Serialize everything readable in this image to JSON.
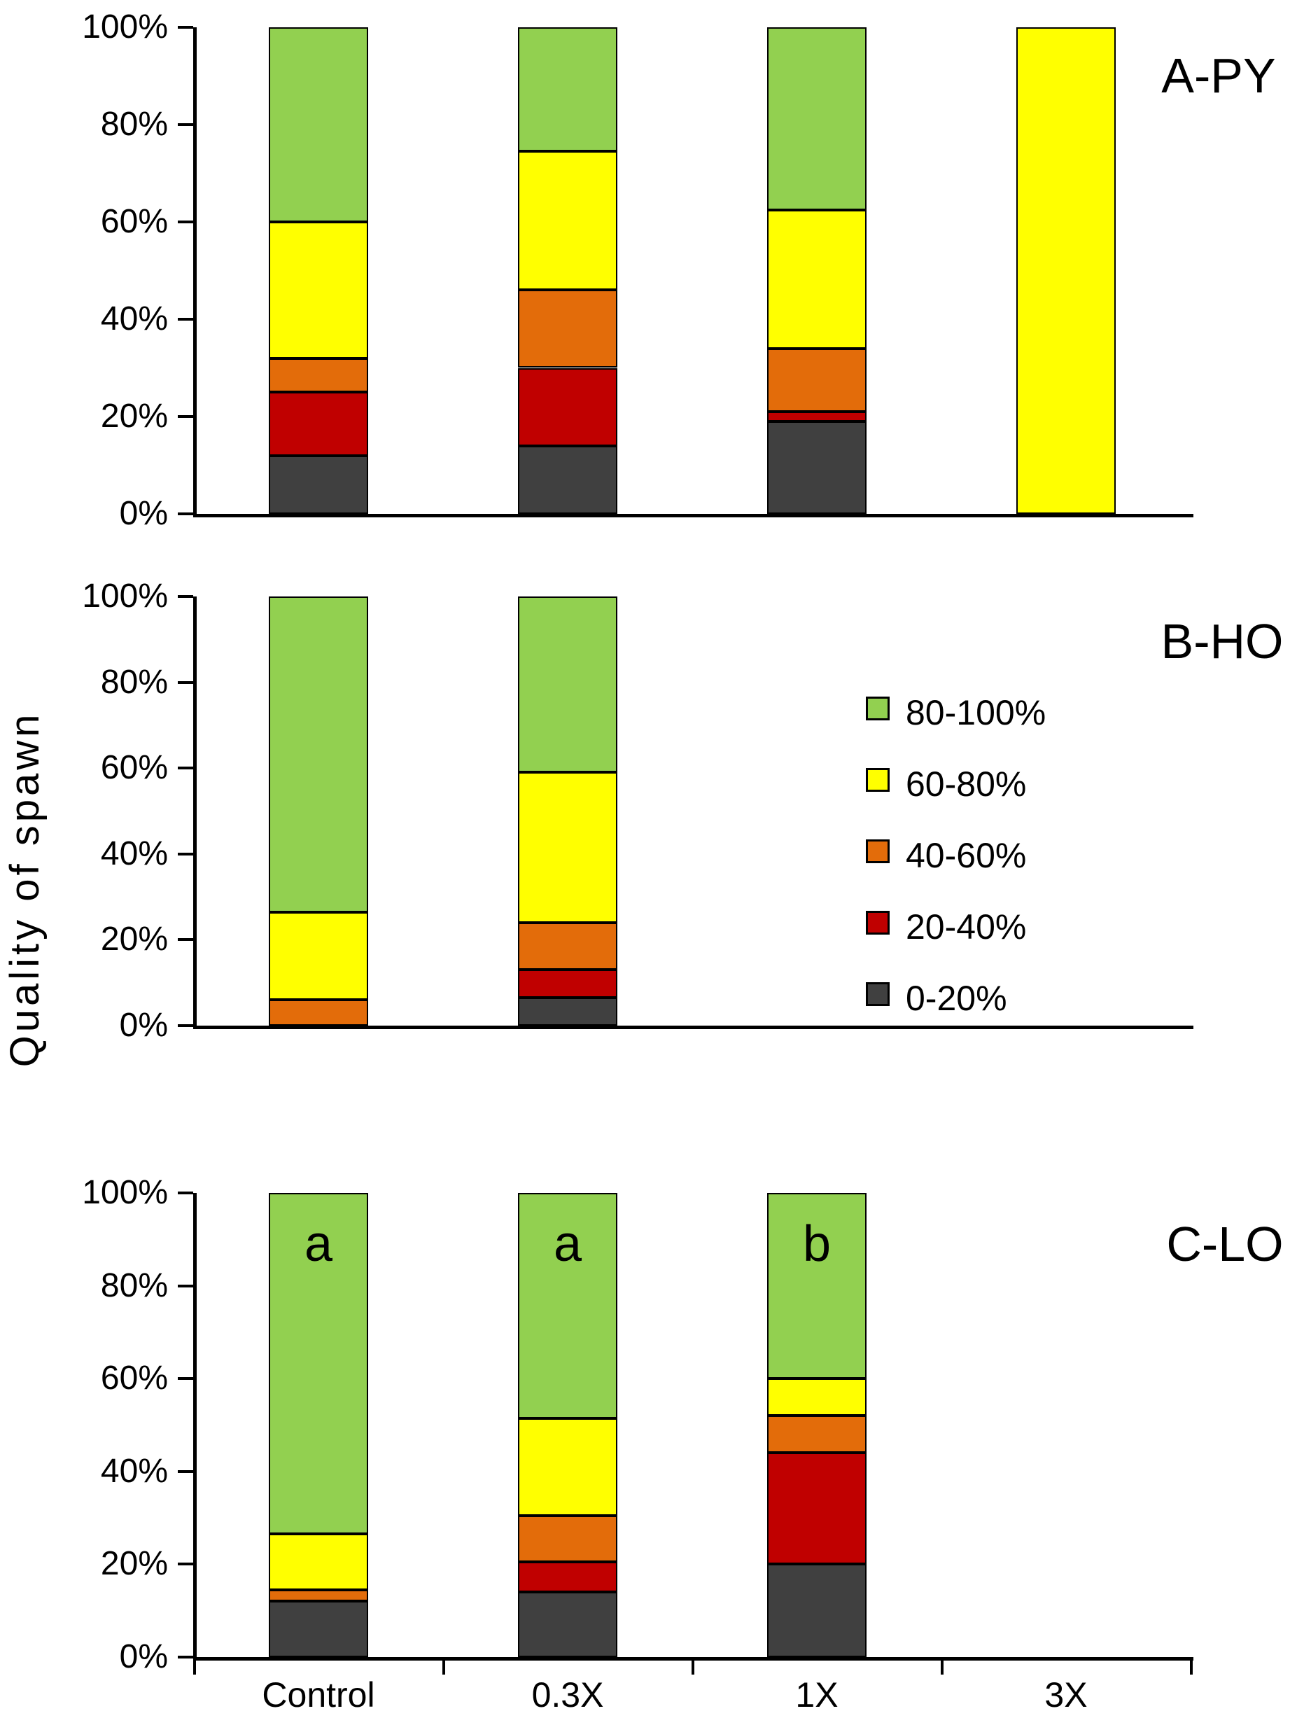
{
  "y_axis_label": "Quality of spawn",
  "colors": {
    "green": "#92D050",
    "yellow": "#FFFF00",
    "orange": "#E36C0A",
    "red": "#C00000",
    "gray": "#404040",
    "axis": "#000000",
    "text": "#000000",
    "background": "#FFFFFF"
  },
  "y_ticks": [
    "100%",
    "80%",
    "60%",
    "40%",
    "20%",
    "0%"
  ],
  "categories": [
    "Control",
    "0.3X",
    "1X",
    "3X"
  ],
  "legend": {
    "position": "middle-right of B panel",
    "items": [
      {
        "label": "80-100%",
        "color_key": "green"
      },
      {
        "label": "60-80%",
        "color_key": "yellow"
      },
      {
        "label": "40-60%",
        "color_key": "orange"
      },
      {
        "label": "20-40%",
        "color_key": "red"
      },
      {
        "label": "0-20%",
        "color_key": "gray"
      }
    ]
  },
  "chart_data": [
    {
      "type": "bar",
      "stacked": true,
      "title": "A-PY",
      "ylabel": "Quality of spawn",
      "ylim": [
        0,
        100
      ],
      "grid": false,
      "categories": [
        "Control",
        "0.3X",
        "1X",
        "3X"
      ],
      "series": [
        {
          "name": "0-20%",
          "color_key": "gray",
          "values": [
            12,
            14,
            19,
            0
          ]
        },
        {
          "name": "20-40%",
          "color_key": "red",
          "values": [
            13,
            16,
            2,
            0
          ]
        },
        {
          "name": "40-60%",
          "color_key": "orange",
          "values": [
            7,
            16,
            13,
            0
          ]
        },
        {
          "name": "60-80%",
          "color_key": "yellow",
          "values": [
            28,
            28.5,
            28.5,
            100
          ]
        },
        {
          "name": "80-100%",
          "color_key": "green",
          "values": [
            40,
            25.5,
            37.5,
            0
          ]
        }
      ],
      "annotations": []
    },
    {
      "type": "bar",
      "stacked": true,
      "title": "B-HO",
      "ylabel": "Quality of spawn",
      "ylim": [
        0,
        100
      ],
      "grid": false,
      "categories": [
        "Control",
        "0.3X",
        "1X",
        "3X"
      ],
      "series": [
        {
          "name": "0-20%",
          "color_key": "gray",
          "values": [
            0,
            6.5,
            0,
            0
          ]
        },
        {
          "name": "20-40%",
          "color_key": "red",
          "values": [
            0,
            6.5,
            0,
            0
          ]
        },
        {
          "name": "40-60%",
          "color_key": "orange",
          "values": [
            6,
            11,
            0,
            0
          ]
        },
        {
          "name": "60-80%",
          "color_key": "yellow",
          "values": [
            20.5,
            35,
            0,
            0
          ]
        },
        {
          "name": "80-100%",
          "color_key": "green",
          "values": [
            73.5,
            41,
            0,
            0
          ]
        }
      ],
      "annotations": []
    },
    {
      "type": "bar",
      "stacked": true,
      "title": "C-LO",
      "ylabel": "Quality of spawn",
      "ylim": [
        0,
        100
      ],
      "grid": false,
      "categories": [
        "Control",
        "0.3X",
        "1X",
        "3X"
      ],
      "series": [
        {
          "name": "0-20%",
          "color_key": "gray",
          "values": [
            12,
            14,
            20,
            0
          ]
        },
        {
          "name": "20-40%",
          "color_key": "red",
          "values": [
            0,
            6.5,
            24,
            0
          ]
        },
        {
          "name": "40-60%",
          "color_key": "orange",
          "values": [
            2.5,
            10,
            8,
            0
          ]
        },
        {
          "name": "60-80%",
          "color_key": "yellow",
          "values": [
            12,
            21,
            8,
            0
          ]
        },
        {
          "name": "80-100%",
          "color_key": "green",
          "values": [
            73.5,
            48.5,
            40,
            0
          ]
        }
      ],
      "annotations": [
        {
          "category": "Control",
          "text": "a"
        },
        {
          "category": "0.3X",
          "text": "a"
        },
        {
          "category": "1X",
          "text": "b"
        }
      ]
    }
  ]
}
